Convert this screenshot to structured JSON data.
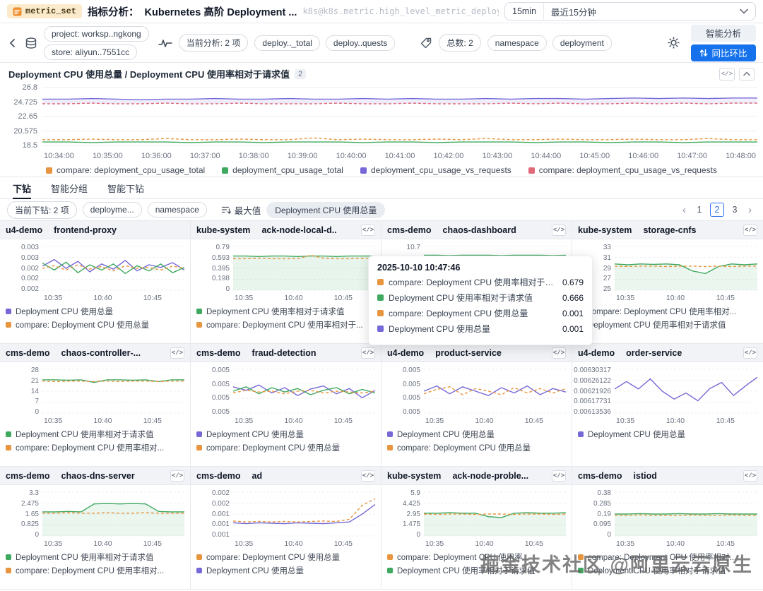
{
  "header": {
    "badge": "metric_set",
    "title_prefix": "指标分析：",
    "title": "Kubernetes 高阶 Deployment ...",
    "metric_id": "k8s@k8s.metric.high_level_metric_deploym...",
    "time_range_short": "15min",
    "time_range_label": "最近15分钟"
  },
  "toolbar": {
    "project_pill": "project: worksp..ngkong",
    "store_pill": "store: aliyun..7551cc",
    "current_analysis_pill": "当前分析: 2 项",
    "metric_pills": [
      "deploy.._total",
      "deploy..quests"
    ],
    "total_pill": "总数: 2",
    "tag_pills": [
      "namespace",
      "deployment"
    ],
    "smart_analysis_button": "智能分析",
    "compare_button": "同比环比"
  },
  "main_chart": {
    "title": "Deployment CPU 使用总量 / Deployment CPU 使用率相对于请求值",
    "count_badge": "2",
    "y_ticks": [
      "26.8",
      "24.725",
      "22.65",
      "20.575",
      "18.5"
    ],
    "x_ticks": [
      "10:34:00",
      "10:35:00",
      "10:36:00",
      "10:37:00",
      "10:38:00",
      "10:39:00",
      "10:40:00",
      "10:41:00",
      "10:42:00",
      "10:43:00",
      "10:44:00",
      "10:45:00",
      "10:46:00",
      "10:47:00",
      "10:48:00"
    ],
    "legend": [
      {
        "label": "compare: deployment_cpu_usage_total",
        "color": "#e8953f"
      },
      {
        "label": "deployment_cpu_usage_total",
        "color": "#3fa95f"
      },
      {
        "label": "deployment_cpu_usage_vs_requests",
        "color": "#7668d6"
      },
      {
        "label": "compare: deployment_cpu_usage_vs_requests",
        "color": "#e06a78"
      }
    ],
    "series": [
      {
        "color": "#7668d6",
        "fill": "rgba(118,104,214,0.10)",
        "fillTo": 0.72,
        "points": [
          0.8,
          0.8,
          0.81,
          0.8,
          0.79,
          0.8,
          0.8,
          0.81,
          0.8,
          0.8,
          0.81,
          0.8,
          0.8,
          0.81,
          0.8,
          0.81,
          0.8,
          0.8,
          0.81,
          0.8,
          0.81,
          0.81,
          0.8,
          0.81,
          0.82,
          0.81,
          0.82,
          0.81,
          0.82,
          0.82
        ]
      },
      {
        "color": "#e06a78",
        "dash": true,
        "points": [
          0.72,
          0.72,
          0.73,
          0.72,
          0.72,
          0.73,
          0.72,
          0.72,
          0.73,
          0.72,
          0.72,
          0.72,
          0.73,
          0.72,
          0.72,
          0.73,
          0.72,
          0.72,
          0.72,
          0.73,
          0.72,
          0.73,
          0.72,
          0.72,
          0.73,
          0.72,
          0.73,
          0.72,
          0.73,
          0.73
        ]
      },
      {
        "color": "#3fa95f",
        "points": [
          0.06,
          0.06,
          0.05,
          0.06,
          0.06,
          0.06,
          0.05,
          0.06,
          0.06,
          0.05,
          0.06,
          0.06,
          0.06,
          0.05,
          0.06,
          0.06,
          0.05,
          0.06,
          0.06,
          0.06,
          0.05,
          0.06,
          0.06,
          0.05,
          0.06,
          0.06,
          0.05,
          0.06,
          0.06,
          0.06
        ]
      },
      {
        "color": "#e8953f",
        "dash": true,
        "points": [
          0.1,
          0.1,
          0.11,
          0.1,
          0.1,
          0.12,
          0.1,
          0.1,
          0.11,
          0.1,
          0.1,
          0.13,
          0.1,
          0.11,
          0.1,
          0.1,
          0.11,
          0.1,
          0.12,
          0.1,
          0.1,
          0.11,
          0.1,
          0.1,
          0.11,
          0.1,
          0.1,
          0.12,
          0.1,
          0.1
        ]
      }
    ]
  },
  "tabs": [
    {
      "label": "下钻",
      "active": true
    },
    {
      "label": "智能分组",
      "active": false
    },
    {
      "label": "智能下钻",
      "active": false
    }
  ],
  "filter_bar": {
    "current_drill_pill": "当前下钻: 2 项",
    "dimension_pills": [
      "deployme...",
      "namespace"
    ],
    "agg_label": "最大值",
    "metric_chip": "Deployment CPU 使用总量",
    "pages": [
      "1",
      "2",
      "3"
    ],
    "active_page": "2"
  },
  "tooltip": {
    "timestamp": "2025-10-10 10:47:46",
    "rows": [
      {
        "color": "#e8953f",
        "label": "compare: Deployment CPU 使用率相对于请求值",
        "value": "0.679"
      },
      {
        "color": "#3fa95f",
        "label": "Deployment CPU 使用率相对于请求值",
        "value": "0.666"
      },
      {
        "color": "#e8953f",
        "label": "compare: Deployment CPU 使用总量",
        "value": "0.001"
      },
      {
        "color": "#7668d6",
        "label": "Deployment CPU 使用总量",
        "value": "0.001"
      }
    ]
  },
  "watermark": "掘金技术社区 @阿里云云原生",
  "cards": [
    {
      "namespace": "u4-demo",
      "name": "frontend-proxy",
      "show_code": false,
      "y_ticks": [
        "0.003",
        "0.003",
        "0.002",
        "0.002",
        "0.002"
      ],
      "x_ticks": [
        "10:35",
        "10:40",
        "10:45"
      ],
      "legend": [
        {
          "color": "#7668d6",
          "label": "Deployment CPU 使用总量"
        },
        {
          "color": "#e8953f",
          "label": "compare: Deployment CPU 使用总量"
        }
      ],
      "series": [
        {
          "color": "#7668d6",
          "points": [
            0.55,
            0.7,
            0.5,
            0.66,
            0.42,
            0.6,
            0.48,
            0.68,
            0.44,
            0.58,
            0.52,
            0.63,
            0.46
          ]
        },
        {
          "color": "#3fa95f",
          "points": [
            0.62,
            0.46,
            0.64,
            0.4,
            0.58,
            0.46,
            0.6,
            0.38,
            0.56,
            0.44,
            0.6,
            0.4,
            0.52
          ]
        },
        {
          "color": "#e8953f",
          "dash": true,
          "points": [
            0.5,
            0.56,
            0.46,
            0.58,
            0.48,
            0.54,
            0.44,
            0.56,
            0.5,
            0.52,
            0.46,
            0.55,
            0.5
          ]
        }
      ]
    },
    {
      "namespace": "kube-system",
      "name": "ack-node-local-d..",
      "show_code": true,
      "y_ticks": [
        "0.79",
        "0.593",
        "0.395",
        "0.198",
        "0"
      ],
      "x_ticks": [
        "10:35",
        "10:40",
        "10:45"
      ],
      "legend": [
        {
          "color": "#3fa95f",
          "label": "Deployment CPU 使用率相对于请求值"
        },
        {
          "color": "#e8953f",
          "label": "compare: Deployment CPU 使用率相对于..."
        }
      ],
      "series": [
        {
          "color": "#3fa95f",
          "fill": "rgba(63,169,95,0.12)",
          "points": [
            0.78,
            0.78,
            0.77,
            0.78,
            0.78,
            0.77,
            0.78,
            0.78,
            0.77,
            0.78,
            0.78,
            0.78
          ]
        },
        {
          "color": "#e8953f",
          "dash": true,
          "points": [
            0.72,
            0.72,
            0.73,
            0.72,
            0.72,
            0.72,
            0.8,
            0.73,
            0.72,
            0.72,
            0.73,
            0.72
          ]
        }
      ]
    },
    {
      "namespace": "cms-demo",
      "name": "chaos-dashboard",
      "show_code": true,
      "y_ticks": [
        "10.7"
      ],
      "x_ticks": [],
      "legend": [],
      "series": [
        {
          "color": "#3fa95f",
          "fill": "rgba(63,169,95,0.12)",
          "points": [
            0.8,
            0.8,
            0.79,
            0.8,
            0.8,
            0.8,
            0.79,
            0.8,
            0.8,
            0.8,
            0.79,
            0.8
          ]
        }
      ]
    },
    {
      "namespace": "kube-system",
      "name": "storage-cnfs",
      "show_code": true,
      "y_ticks": [
        "33",
        "31",
        "29",
        "27",
        "25"
      ],
      "x_ticks": [
        "10:35",
        "10:40",
        "10:45"
      ],
      "legend": [
        {
          "color": "#e8953f",
          "label": "compare: Deployment CPU 使用率相对..."
        },
        {
          "color": "#3fa95f",
          "label": "Deployment CPU 使用率相对于请求值"
        }
      ],
      "series": [
        {
          "color": "#3fa95f",
          "fill": "rgba(63,169,95,0.10)",
          "points": [
            0.6,
            0.58,
            0.6,
            0.59,
            0.6,
            0.58,
            0.44,
            0.38,
            0.54,
            0.6,
            0.58,
            0.6
          ]
        },
        {
          "color": "#e8953f",
          "dash": true,
          "points": [
            0.55,
            0.54,
            0.55,
            0.55,
            0.54,
            0.55,
            0.55,
            0.54,
            0.55,
            0.54,
            0.55,
            0.55
          ]
        }
      ]
    },
    {
      "namespace": "cms-demo",
      "name": "chaos-controller-...",
      "show_code": true,
      "y_ticks": [
        "28",
        "21",
        "14",
        "7",
        "0"
      ],
      "x_ticks": [
        "10:35",
        "10:40",
        "10:45"
      ],
      "legend": [
        {
          "color": "#3fa95f",
          "label": "Deployment CPU 使用率相对于请求值"
        },
        {
          "color": "#e8953f",
          "label": "compare: Deployment CPU 使用率相对..."
        }
      ],
      "series": [
        {
          "color": "#3fa95f",
          "points": [
            0.76,
            0.76,
            0.75,
            0.76,
            0.7,
            0.76,
            0.76,
            0.75,
            0.76,
            0.72,
            0.76,
            0.76
          ]
        },
        {
          "color": "#e8953f",
          "dash": true,
          "points": [
            0.73,
            0.72,
            0.73,
            0.73,
            0.72,
            0.73,
            0.72,
            0.73,
            0.73,
            0.72,
            0.73,
            0.73
          ]
        }
      ]
    },
    {
      "namespace": "cms-demo",
      "name": "fraud-detection",
      "show_code": true,
      "y_ticks": [
        "0.005",
        "0.005",
        "0.005",
        "0.005"
      ],
      "x_ticks": [
        "10:35",
        "10:40",
        "10:45"
      ],
      "legend": [
        {
          "color": "#7668d6",
          "label": "Deployment CPU 使用总量"
        },
        {
          "color": "#e8953f",
          "label": "compare: Deployment CPU 使用总量"
        }
      ],
      "series": [
        {
          "color": "#7668d6",
          "points": [
            0.6,
            0.52,
            0.64,
            0.46,
            0.58,
            0.4,
            0.55,
            0.62,
            0.44,
            0.56,
            0.35,
            0.52
          ]
        },
        {
          "color": "#3fa95f",
          "points": [
            0.5,
            0.6,
            0.44,
            0.58,
            0.48,
            0.56,
            0.42,
            0.52,
            0.58,
            0.44,
            0.54,
            0.46
          ]
        },
        {
          "color": "#e8953f",
          "dash": true,
          "points": [
            0.46,
            0.52,
            0.48,
            0.5,
            0.44,
            0.5,
            0.52,
            0.46,
            0.5,
            0.48,
            0.46,
            0.5
          ]
        }
      ]
    },
    {
      "namespace": "u4-demo",
      "name": "product-service",
      "show_code": true,
      "y_ticks": [
        "0.005",
        "0.005",
        "0.005",
        "0.005"
      ],
      "x_ticks": [
        "10:35",
        "10:40",
        "10:45"
      ],
      "legend": [
        {
          "color": "#7668d6",
          "label": "Deployment CPU 使用总量"
        },
        {
          "color": "#e8953f",
          "label": "compare: Deployment CPU 使用总量"
        }
      ],
      "series": [
        {
          "color": "#7668d6",
          "points": [
            0.5,
            0.62,
            0.44,
            0.6,
            0.5,
            0.4,
            0.58,
            0.46,
            0.62,
            0.42,
            0.56,
            0.48
          ]
        },
        {
          "color": "#e8953f",
          "dash": true,
          "points": [
            0.44,
            0.54,
            0.6,
            0.42,
            0.56,
            0.5,
            0.42,
            0.58,
            0.46,
            0.56,
            0.46,
            0.56
          ]
        }
      ]
    },
    {
      "namespace": "u4-demo",
      "name": "order-service",
      "show_code": true,
      "y_ticks": [
        "0.00630317",
        "0.00626122",
        "0.00621926",
        "0.00617731",
        "0.00613536"
      ],
      "x_ticks": [
        "10:35",
        "10:40",
        "10:45"
      ],
      "legend": [
        {
          "color": "#7668d6",
          "label": "Deployment CPU 使用总量"
        }
      ],
      "series": [
        {
          "color": "#7668d6",
          "points": [
            0.55,
            0.72,
            0.55,
            0.78,
            0.5,
            0.32,
            0.46,
            0.28,
            0.56,
            0.7,
            0.4,
            0.62,
            0.82
          ]
        }
      ]
    },
    {
      "namespace": "cms-demo",
      "name": "chaos-dns-server",
      "show_code": true,
      "y_ticks": [
        "3.3",
        "2.475",
        "1.65",
        "0.825",
        "0"
      ],
      "x_ticks": [
        "10:35",
        "10:40",
        "10:45"
      ],
      "legend": [
        {
          "color": "#3fa95f",
          "label": "Deployment CPU 使用率相对于请求值"
        },
        {
          "color": "#e8953f",
          "label": "compare: Deployment CPU 使用率相对..."
        }
      ],
      "series": [
        {
          "color": "#3fa95f",
          "fill": "rgba(63,169,95,0.10)",
          "points": [
            0.55,
            0.55,
            0.56,
            0.55,
            0.73,
            0.74,
            0.73,
            0.74,
            0.73,
            0.56,
            0.55,
            0.55
          ]
        },
        {
          "color": "#e8953f",
          "dash": true,
          "points": [
            0.52,
            0.52,
            0.53,
            0.52,
            0.52,
            0.53,
            0.52,
            0.52,
            0.53,
            0.52,
            0.52,
            0.52
          ]
        }
      ]
    },
    {
      "namespace": "cms-demo",
      "name": "ad",
      "show_code": true,
      "y_ticks": [
        "0.002",
        "0.002",
        "0.001",
        "0.001",
        "0.001"
      ],
      "x_ticks": [
        "10:35",
        "10:40",
        "10:45"
      ],
      "legend": [
        {
          "color": "#e8953f",
          "label": "compare: Deployment CPU 使用总量"
        },
        {
          "color": "#7668d6",
          "label": "Deployment CPU 使用总量"
        }
      ],
      "series": [
        {
          "color": "#7668d6",
          "points": [
            0.3,
            0.28,
            0.3,
            0.29,
            0.28,
            0.3,
            0.29,
            0.28,
            0.3,
            0.32,
            0.5,
            0.72
          ]
        },
        {
          "color": "#e8953f",
          "dash": true,
          "points": [
            0.34,
            0.32,
            0.33,
            0.32,
            0.33,
            0.32,
            0.33,
            0.34,
            0.33,
            0.38,
            0.7,
            0.85
          ]
        }
      ]
    },
    {
      "namespace": "kube-system",
      "name": "ack-node-proble...",
      "show_code": true,
      "y_ticks": [
        "5.9",
        "4.425",
        "2.95",
        "1.475",
        "0"
      ],
      "x_ticks": [
        "10:35",
        "10:40",
        "10:45"
      ],
      "legend": [
        {
          "color": "#e8953f",
          "label": "compare: Deployment CPU 使用率..."
        },
        {
          "color": "#3fa95f",
          "label": "Deployment CPU 使用率相对于请求值"
        }
      ],
      "series": [
        {
          "color": "#3fa95f",
          "fill": "rgba(63,169,95,0.10)",
          "points": [
            0.52,
            0.52,
            0.53,
            0.52,
            0.52,
            0.44,
            0.42,
            0.52,
            0.53,
            0.52,
            0.52,
            0.53
          ]
        },
        {
          "color": "#e8953f",
          "dash": true,
          "points": [
            0.5,
            0.49,
            0.5,
            0.5,
            0.49,
            0.5,
            0.5,
            0.49,
            0.5,
            0.5,
            0.49,
            0.5
          ]
        }
      ]
    },
    {
      "namespace": "cms-demo",
      "name": "istiod",
      "show_code": true,
      "y_ticks": [
        "0.38",
        "0.285",
        "0.19",
        "0.095",
        "0"
      ],
      "x_ticks": [
        "10:35",
        "10:40",
        "10:45"
      ],
      "legend": [
        {
          "color": "#e8953f",
          "label": "compare: Deployment CPU 使用率相对..."
        },
        {
          "color": "#3fa95f",
          "label": "Deployment CPU 使用率相对于请求值"
        }
      ],
      "series": [
        {
          "color": "#3fa95f",
          "fill": "rgba(63,169,95,0.10)",
          "points": [
            0.5,
            0.5,
            0.51,
            0.5,
            0.5,
            0.51,
            0.5,
            0.5,
            0.51,
            0.5,
            0.5,
            0.5
          ]
        },
        {
          "color": "#e8953f",
          "dash": true,
          "points": [
            0.47,
            0.47,
            0.48,
            0.47,
            0.47,
            0.47,
            0.48,
            0.47,
            0.47,
            0.48,
            0.47,
            0.47
          ]
        }
      ]
    }
  ]
}
